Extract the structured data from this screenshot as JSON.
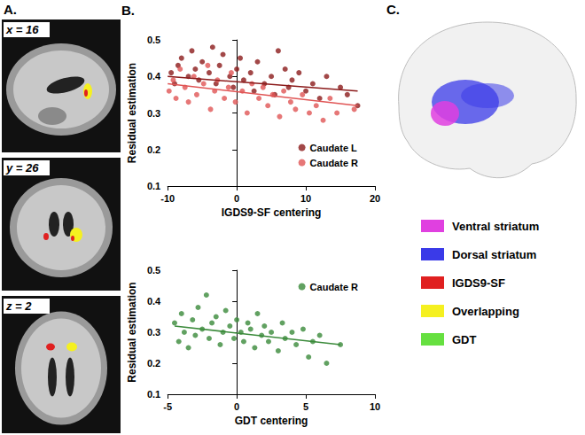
{
  "chart_data": [
    {
      "type": "scatter",
      "panel": "B.",
      "x_label": "IGDS9-SF centering",
      "y_label": "Residual estimation",
      "xlim": [
        -10,
        20
      ],
      "xticks": [
        -10,
        0,
        10,
        20
      ],
      "ylim": [
        0.1,
        0.5
      ],
      "yticks": [
        0.1,
        0.2,
        0.3,
        0.4,
        0.5
      ],
      "grid": false,
      "legend": "lower right",
      "series": [
        {
          "name": "Caudate L",
          "color": "#8b1a1a",
          "marker": "circle",
          "x": [
            -9.5,
            -9,
            -8.5,
            -8,
            -7,
            -6.5,
            -6,
            -5.5,
            -5,
            -4,
            -3.5,
            -3,
            -2.5,
            -2,
            -1,
            -0.5,
            0,
            0.5,
            1,
            2,
            2.5,
            3,
            4,
            5,
            5.5,
            6,
            7,
            7.5,
            8,
            9,
            10,
            11,
            12,
            13,
            15,
            16,
            17.5
          ],
          "values": [
            0.41,
            0.38,
            0.43,
            0.45,
            0.4,
            0.47,
            0.42,
            0.39,
            0.44,
            0.41,
            0.48,
            0.38,
            0.43,
            0.46,
            0.4,
            0.37,
            0.42,
            0.45,
            0.39,
            0.41,
            0.36,
            0.44,
            0.38,
            0.4,
            0.35,
            0.47,
            0.42,
            0.37,
            0.39,
            0.41,
            0.36,
            0.38,
            0.34,
            0.4,
            0.37,
            0.35,
            0.32
          ],
          "fit": {
            "x": [
              -10,
              17.5
            ],
            "values": [
              0.4,
              0.36
            ]
          }
        },
        {
          "name": "Caudate R",
          "color": "#e05555",
          "marker": "circle",
          "x": [
            -9.8,
            -9.2,
            -8.8,
            -8.2,
            -7.5,
            -7,
            -6.2,
            -5.8,
            -4.8,
            -4.2,
            -3.8,
            -3.2,
            -2.8,
            -1.8,
            -1.2,
            -0.8,
            -0.2,
            0.8,
            1.5,
            2.2,
            3.2,
            3.8,
            4.5,
            5.2,
            6.2,
            6.8,
            7.8,
            8.5,
            9.5,
            10.5,
            11.5,
            12.5,
            13.5,
            14.5,
            17
          ],
          "values": [
            0.36,
            0.39,
            0.34,
            0.42,
            0.37,
            0.33,
            0.4,
            0.35,
            0.38,
            0.43,
            0.31,
            0.36,
            0.39,
            0.34,
            0.37,
            0.41,
            0.33,
            0.36,
            0.3,
            0.38,
            0.34,
            0.37,
            0.32,
            0.35,
            0.29,
            0.36,
            0.33,
            0.31,
            0.35,
            0.3,
            0.32,
            0.28,
            0.34,
            0.3,
            0.31
          ],
          "fit": {
            "x": [
              -10,
              17.5
            ],
            "values": [
              0.38,
              0.32
            ]
          }
        }
      ]
    },
    {
      "type": "scatter",
      "x_label": "GDT centering",
      "y_label": "Residual estimation",
      "xlim": [
        -5,
        10
      ],
      "xticks": [
        -5,
        0,
        5,
        10
      ],
      "ylim": [
        0.1,
        0.5
      ],
      "yticks": [
        0.1,
        0.2,
        0.3,
        0.4,
        0.5
      ],
      "grid": false,
      "legend": "upper right",
      "series": [
        {
          "name": "Caudate R",
          "color": "#3a8a3a",
          "marker": "circle",
          "x": [
            -4.5,
            -4.2,
            -4,
            -3.8,
            -3.5,
            -3.2,
            -3,
            -2.8,
            -2.5,
            -2.2,
            -2,
            -1.8,
            -1.5,
            -1.2,
            -1,
            -0.8,
            -0.5,
            -0.2,
            0,
            0.3,
            0.5,
            0.8,
            1,
            1.3,
            1.5,
            1.8,
            2,
            2.3,
            2.5,
            3,
            3.3,
            3.5,
            4,
            4.3,
            4.8,
            5.2,
            5.5,
            6,
            6.5,
            7.5
          ],
          "values": [
            0.33,
            0.27,
            0.36,
            0.3,
            0.25,
            0.34,
            0.29,
            0.38,
            0.31,
            0.42,
            0.28,
            0.33,
            0.35,
            0.26,
            0.3,
            0.37,
            0.32,
            0.28,
            0.34,
            0.3,
            0.27,
            0.33,
            0.31,
            0.25,
            0.36,
            0.29,
            0.32,
            0.27,
            0.3,
            0.24,
            0.33,
            0.28,
            0.3,
            0.26,
            0.31,
            0.22,
            0.27,
            0.29,
            0.2,
            0.26
          ],
          "fit": {
            "x": [
              -4.5,
              7.5
            ],
            "values": [
              0.32,
              0.26
            ]
          }
        }
      ]
    }
  ],
  "panels": {
    "A": {
      "label": "A.",
      "slices": [
        {
          "label": "x = 16"
        },
        {
          "label": "y = 26"
        },
        {
          "label": "z = 2"
        }
      ]
    },
    "C": {
      "label": "C.",
      "legend": [
        {
          "name": "Ventral striatum",
          "color": "#e040e0"
        },
        {
          "name": "Dorsal striatum",
          "color": "#3a3ae8"
        },
        {
          "name": "IGDS9-SF",
          "color": "#e02020"
        },
        {
          "name": "Overlapping",
          "color": "#f5f020"
        },
        {
          "name": "GDT",
          "color": "#66e040"
        }
      ]
    }
  }
}
